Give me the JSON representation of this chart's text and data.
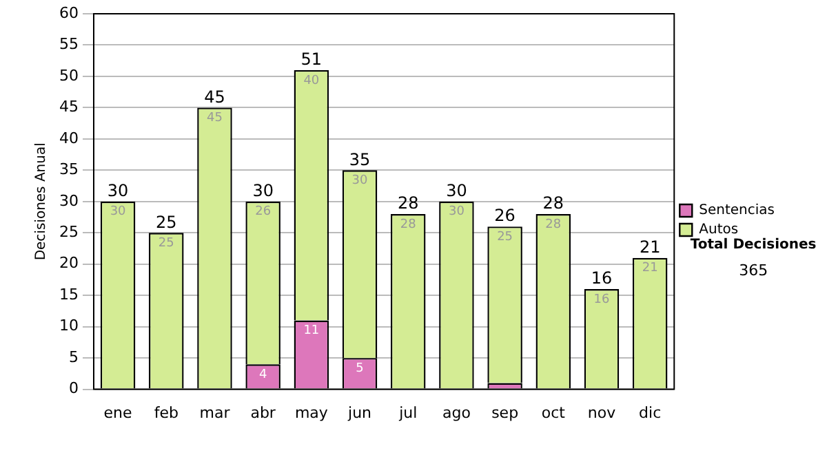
{
  "chart_data": {
    "type": "bar",
    "stacked": true,
    "ylabel": "Decisiones Anual",
    "categories": [
      "ene",
      "feb",
      "mar",
      "abr",
      "may",
      "jun",
      "jul",
      "ago",
      "sep",
      "oct",
      "nov",
      "dic"
    ],
    "series": [
      {
        "name": "Sentencias",
        "color": "#dd77bb",
        "values": [
          0,
          0,
          0,
          4,
          11,
          5,
          0,
          0,
          1,
          0,
          0,
          0
        ],
        "value_labels": [
          null,
          null,
          null,
          "4",
          "11",
          "5",
          null,
          null,
          null,
          null,
          null,
          null
        ]
      },
      {
        "name": "Autos",
        "color": "#d4ec94",
        "values": [
          30,
          25,
          45,
          26,
          40,
          30,
          28,
          30,
          25,
          28,
          16,
          21
        ],
        "value_labels": [
          "30",
          "25",
          "45",
          "26",
          "40",
          "30",
          "28",
          "30",
          "25",
          "28",
          "16",
          "21"
        ]
      }
    ],
    "totals": [
      "30",
      "25",
      "45",
      "30",
      "51",
      "35",
      "28",
      "30",
      "26",
      "28",
      "16",
      "21"
    ],
    "ylim": [
      0,
      60
    ],
    "yticks": [
      0,
      5,
      10,
      15,
      20,
      25,
      30,
      35,
      40,
      45,
      50,
      55,
      60
    ],
    "grid": "y",
    "legend": "right",
    "annotations": [
      "Total Decisiones",
      "365"
    ]
  }
}
